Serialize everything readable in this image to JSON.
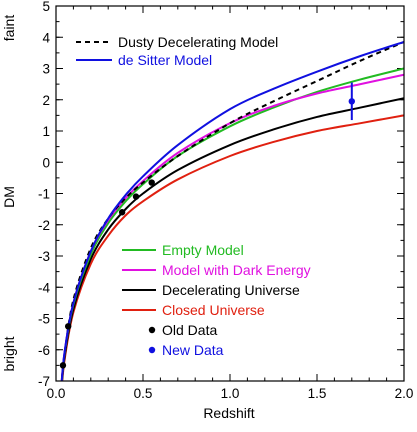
{
  "chart_data": {
    "type": "line",
    "xlabel": "Redshift",
    "ylabel": "DM",
    "ylabel_top": "faint",
    "ylabel_bottom": "bright",
    "xlim": [
      0.0,
      2.0
    ],
    "ylim": [
      -7,
      5
    ],
    "xticks": [
      "0.0",
      "0.5",
      "1.0",
      "1.5",
      "2.0"
    ],
    "yticks": [
      "5",
      "4",
      "3",
      "2",
      "1",
      "0",
      "-1",
      "-2",
      "-3",
      "-4",
      "-5",
      "-6",
      "-7"
    ],
    "grid": false,
    "legends": {
      "top": [
        {
          "name": "Dusty Decelerating Model",
          "color": "#000000",
          "dash": true
        },
        {
          "name": "de Sitter Model",
          "color": "#1010e0",
          "dash": false
        }
      ],
      "bottom": [
        {
          "name": "Empty Model",
          "color": "#22bb22",
          "kind": "line"
        },
        {
          "name": "Model with Dark Energy",
          "color": "#e010e0",
          "kind": "line"
        },
        {
          "name": "Decelerating Universe",
          "color": "#000000",
          "kind": "line"
        },
        {
          "name": "Closed Universe",
          "color": "#e02010",
          "kind": "line"
        },
        {
          "name": "Old Data",
          "color": "#000000",
          "kind": "dot"
        },
        {
          "name": "New Data",
          "color": "#1010e0",
          "kind": "dot"
        }
      ]
    },
    "series": [
      {
        "name": "Dusty Decelerating Model",
        "color": "#000000",
        "dash": true,
        "x": [
          0.03,
          0.05,
          0.1,
          0.2,
          0.3,
          0.4,
          0.5,
          0.7,
          1.0,
          1.25,
          1.5,
          1.75,
          2.0
        ],
        "y": [
          -7.2,
          -6.1,
          -4.4,
          -2.75,
          -1.8,
          -1.15,
          -0.65,
          0.2,
          1.25,
          1.95,
          2.6,
          3.25,
          3.85
        ]
      },
      {
        "name": "de Sitter Model",
        "color": "#1010e0",
        "dash": false,
        "x": [
          0.03,
          0.05,
          0.1,
          0.2,
          0.3,
          0.4,
          0.5,
          0.7,
          1.0,
          1.25,
          1.5,
          1.75,
          2.0
        ],
        "y": [
          -7.2,
          -6.05,
          -4.5,
          -2.85,
          -1.8,
          -1.05,
          -0.45,
          0.55,
          1.7,
          2.35,
          2.9,
          3.4,
          3.85
        ]
      },
      {
        "name": "Empty Model",
        "color": "#22bb22",
        "dash": false,
        "x": [
          0.03,
          0.05,
          0.1,
          0.2,
          0.3,
          0.4,
          0.5,
          0.7,
          1.0,
          1.25,
          1.5,
          1.75,
          2.0
        ],
        "y": [
          -7.25,
          -6.1,
          -4.55,
          -2.95,
          -1.95,
          -1.25,
          -0.7,
          0.2,
          1.15,
          1.75,
          2.25,
          2.65,
          3.0
        ]
      },
      {
        "name": "Model with Dark Energy",
        "color": "#e010e0",
        "dash": false,
        "x": [
          0.03,
          0.05,
          0.1,
          0.2,
          0.3,
          0.4,
          0.5,
          0.7,
          1.0,
          1.25,
          1.5,
          1.75,
          2.0
        ],
        "y": [
          -7.2,
          -6.05,
          -4.5,
          -2.85,
          -1.85,
          -1.15,
          -0.6,
          0.3,
          1.25,
          1.8,
          2.2,
          2.5,
          2.8
        ]
      },
      {
        "name": "Decelerating Universe",
        "color": "#000000",
        "dash": false,
        "x": [
          0.03,
          0.05,
          0.1,
          0.2,
          0.3,
          0.4,
          0.5,
          0.7,
          1.0,
          1.25,
          1.5,
          1.75,
          2.0
        ],
        "y": [
          -7.3,
          -6.2,
          -4.7,
          -3.1,
          -2.15,
          -1.5,
          -1.0,
          -0.25,
          0.55,
          1.05,
          1.45,
          1.75,
          2.05
        ]
      },
      {
        "name": "Closed Universe",
        "color": "#e02010",
        "dash": false,
        "x": [
          0.03,
          0.05,
          0.1,
          0.2,
          0.3,
          0.4,
          0.5,
          0.7,
          1.0,
          1.25,
          1.5,
          1.75,
          2.0
        ],
        "y": [
          -7.35,
          -6.3,
          -4.8,
          -3.25,
          -2.35,
          -1.7,
          -1.25,
          -0.55,
          0.2,
          0.65,
          1.0,
          1.25,
          1.5
        ]
      }
    ],
    "points": [
      {
        "name": "Old Data",
        "color": "#000000",
        "x": [
          0.04,
          0.07,
          0.38,
          0.46,
          0.55
        ],
        "y": [
          -6.5,
          -5.25,
          -1.6,
          -1.1,
          -0.65
        ]
      },
      {
        "name": "New Data",
        "color": "#1010e0",
        "x": [
          1.7
        ],
        "y": [
          1.95
        ],
        "yerr": [
          0.6
        ]
      }
    ]
  }
}
